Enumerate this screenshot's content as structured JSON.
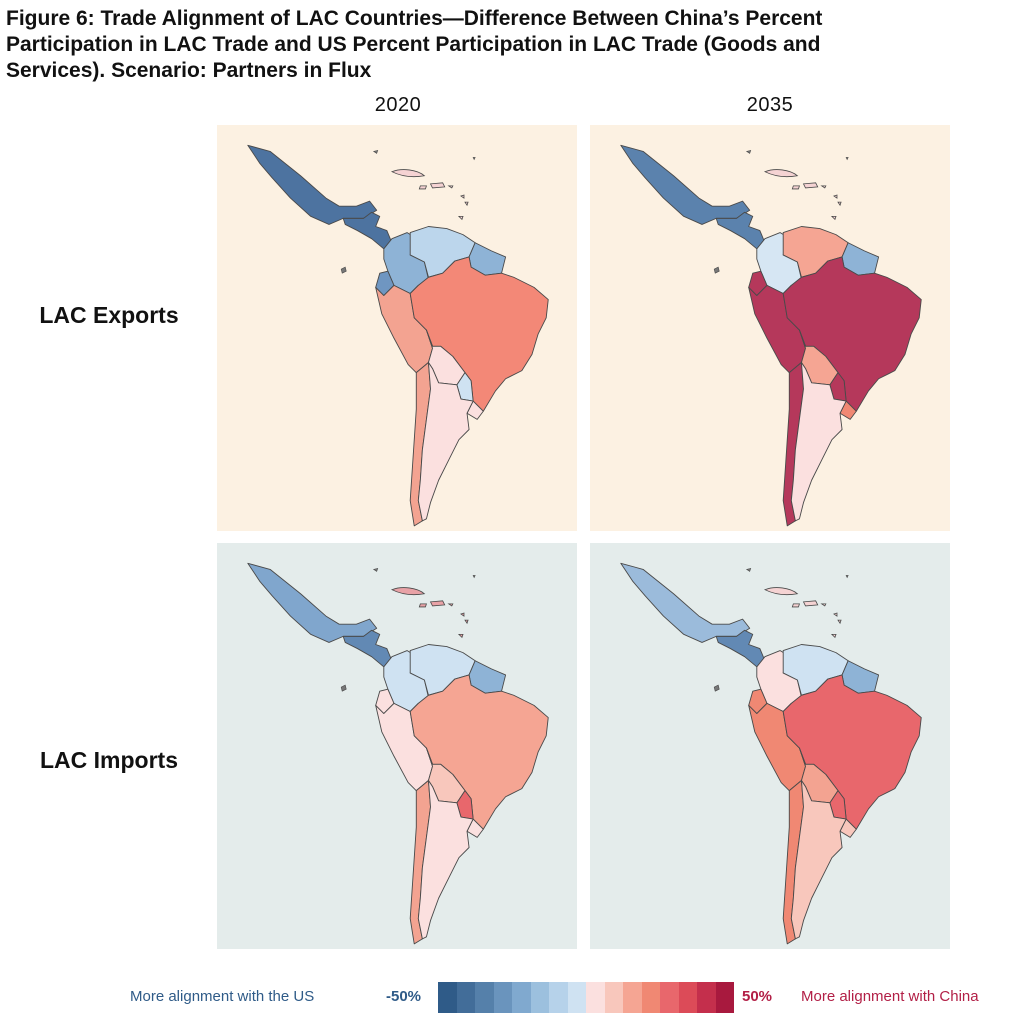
{
  "figure": {
    "title": "Figure 6: Trade Alignment of LAC Countries—Difference Between China’s Percent Participation in LAC Trade and US Percent Participation in LAC Trade (Goods and Services). Scenario: Partners in Flux"
  },
  "columns": [
    "2020",
    "2035"
  ],
  "rows": [
    "LAC Exports",
    "LAC Imports"
  ],
  "panels": [
    {
      "id": "exports-2020",
      "background": "#fcf1e2",
      "fills": {
        "mexico": "#4d73a0",
        "central_america": "#4d73a0",
        "caribbean": "#f5d3d3",
        "colombia": "#8eb3d6",
        "venezuela": "#bcd6ec",
        "guyanas": "#8eb3d6",
        "ecuador": "#6f96c1",
        "peru": "#f3a391",
        "bolivia": "#fbe0df",
        "brazil": "#f38877",
        "paraguay": "#cfe2f2",
        "uruguay": "#fbe0df",
        "chile": "#f3a391",
        "argentina": "#fbe0df"
      }
    },
    {
      "id": "exports-2035",
      "background": "#fcf1e2",
      "fills": {
        "mexico": "#5b82ad",
        "central_america": "#5b82ad",
        "caribbean": "#f5d3d3",
        "colombia": "#d6e6f3",
        "venezuela": "#f5a593",
        "guyanas": "#8eb3d6",
        "ecuador": "#b5385b",
        "peru": "#b5385b",
        "bolivia": "#f5a593",
        "brazil": "#b5385b",
        "paraguay": "#b5385b",
        "uruguay": "#f08873",
        "chile": "#b5385b",
        "argentina": "#fbe0df"
      }
    },
    {
      "id": "imports-2020",
      "background": "#e4eceb",
      "fills": {
        "mexico": "#80a6cd",
        "central_america": "#6289b4",
        "caribbean": "#e8a2a6",
        "colombia": "#cfe2f2",
        "venezuela": "#cfe2f2",
        "guyanas": "#8eb3d6",
        "ecuador": "#fbe0df",
        "peru": "#fbe0df",
        "bolivia": "#f8c7bc",
        "brazil": "#f5a593",
        "paraguay": "#e8676c",
        "uruguay": "#fbe0df",
        "chile": "#f3a391",
        "argentina": "#fbe0df"
      }
    },
    {
      "id": "imports-2035",
      "background": "#e4eceb",
      "fills": {
        "mexico": "#9bbbdb",
        "central_america": "#6289b4",
        "caribbean": "#f5d3d3",
        "colombia": "#fbe0df",
        "venezuela": "#cfe2f2",
        "guyanas": "#8eb3d6",
        "ecuador": "#f08873",
        "peru": "#f08873",
        "bolivia": "#f3a391",
        "brazil": "#e8676c",
        "paraguay": "#e8676c",
        "uruguay": "#f8c7bc",
        "chile": "#f08873",
        "argentina": "#f8c7bc"
      }
    }
  ],
  "legend": {
    "left_label": "More alignment with the US",
    "min": "-50%",
    "max": "50%",
    "right_label": "More alignment with China",
    "colors": [
      "#2f5b88",
      "#426d99",
      "#5580aa",
      "#6a94bd",
      "#80a9cf",
      "#9cc0de",
      "#b6d2ea",
      "#cfe2f2",
      "#fbe0df",
      "#f8c7bc",
      "#f5a593",
      "#f08873",
      "#e8676c",
      "#dc4b58",
      "#c42f4c",
      "#a8193e"
    ]
  }
}
